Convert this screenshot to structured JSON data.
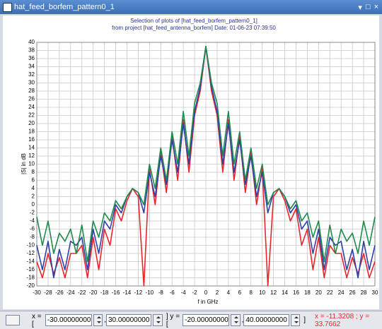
{
  "window": {
    "title": "hat_feed_borfem_pattern0_1",
    "controls": [
      "▾",
      "□",
      "×"
    ]
  },
  "chart_data": {
    "type": "line",
    "title": "Selection of plots of [hat_feed_borfem_pattern0_1]",
    "subtitle": "from project [hat_feed_antenna_borfem]   Date: 01-06-23 07:39:50",
    "xlabel": "f in GHz",
    "ylabel": "|S| in dB",
    "x": [
      -30,
      -29,
      -28,
      -27,
      -26,
      -25,
      -24,
      -23,
      -22,
      -21,
      -20,
      -19,
      -18,
      -17,
      -16,
      -15,
      -14,
      -13,
      -12,
      -11,
      -10,
      -9,
      -8,
      -7,
      -6,
      -5,
      -4,
      -3,
      -2,
      -1,
      0,
      1,
      2,
      3,
      4,
      5,
      6,
      7,
      8,
      9,
      10,
      11,
      12,
      13,
      14,
      15,
      16,
      17,
      18,
      19,
      20,
      21,
      22,
      23,
      24,
      25,
      26,
      27,
      28,
      29,
      30
    ],
    "series": [
      {
        "color": "#e8262b",
        "values": [
          -14,
          -18,
          -12,
          -17,
          -13,
          -18,
          -12,
          -12,
          -10,
          -18,
          -8,
          -16,
          -6,
          -10,
          -1,
          -4,
          1,
          4,
          2,
          -20,
          9,
          0,
          13,
          3,
          17,
          6,
          21,
          8,
          22,
          28,
          39,
          28,
          22,
          8,
          21,
          6,
          17,
          3,
          13,
          0,
          9,
          -20,
          2,
          4,
          1,
          -4,
          -1,
          -10,
          -6,
          -16,
          -8,
          -18,
          -10,
          -12,
          -12,
          -18,
          -13,
          -17,
          -12,
          -18,
          -14
        ]
      },
      {
        "color": "#2e3fa8",
        "values": [
          -10,
          -16,
          -9,
          -18,
          -11,
          -16,
          -9,
          -10,
          -8,
          -16,
          -6,
          -12,
          -4,
          -6,
          0,
          -2,
          2,
          4,
          3,
          -2,
          8,
          2,
          12,
          5,
          16,
          8,
          20,
          10,
          23,
          29,
          39,
          29,
          23,
          10,
          20,
          8,
          16,
          5,
          12,
          2,
          8,
          -2,
          3,
          4,
          2,
          -2,
          0,
          -6,
          -4,
          -12,
          -6,
          -16,
          -8,
          -10,
          -9,
          -16,
          -11,
          -18,
          -9,
          -16,
          -10
        ]
      },
      {
        "color": "#1f8a4c",
        "values": [
          -3,
          -10,
          -4,
          -12,
          -7,
          -9,
          -6,
          -12,
          -5,
          -14,
          -4,
          -8,
          -2,
          -4,
          1,
          -1,
          2,
          4,
          3,
          0,
          10,
          4,
          14,
          6,
          18,
          10,
          23,
          12,
          25,
          30,
          39,
          30,
          25,
          12,
          23,
          10,
          18,
          6,
          14,
          4,
          10,
          0,
          3,
          4,
          2,
          -1,
          1,
          -4,
          -2,
          -8,
          -4,
          -14,
          -5,
          -12,
          -6,
          -9,
          -7,
          -12,
          -4,
          -10,
          -3
        ]
      }
    ],
    "xlim": [
      -30,
      30
    ],
    "ylim": [
      -20,
      40
    ],
    "xticks": [
      -30,
      -28,
      -26,
      -24,
      -22,
      -20,
      -18,
      -16,
      -14,
      -12,
      -10,
      -8,
      -6,
      -4,
      -2,
      0,
      2,
      4,
      6,
      8,
      10,
      12,
      14,
      16,
      18,
      20,
      22,
      24,
      26,
      28,
      30
    ],
    "yticks": [
      -20,
      -18,
      -16,
      -14,
      -12,
      -10,
      -8,
      -6,
      -4,
      -2,
      0,
      2,
      4,
      6,
      8,
      10,
      12,
      14,
      16,
      18,
      20,
      22,
      24,
      26,
      28,
      30,
      32,
      34,
      36,
      38,
      40
    ],
    "grid": true
  },
  "toolbar": {
    "x_prefix": "x = [",
    "x_min": "-30.00000000",
    "x_sep": ",",
    "x_max": "30.00000000",
    "y_prefix": "] y = [",
    "y_min": "-20.00000000",
    "y_sep": ",",
    "y_max": "40.00000000",
    "suffix": "]",
    "cursor": "x = -11.3208 ; y = 33.7662"
  }
}
